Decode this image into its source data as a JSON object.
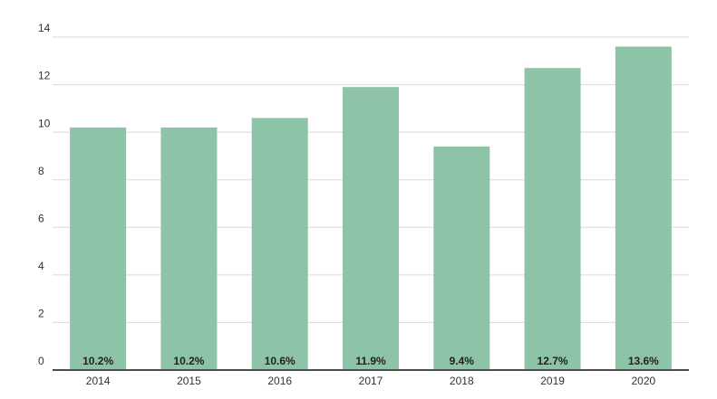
{
  "chart_data": {
    "type": "bar",
    "categories": [
      "2014",
      "2015",
      "2016",
      "2017",
      "2018",
      "2019",
      "2020"
    ],
    "values": [
      10.2,
      10.2,
      10.6,
      11.9,
      9.4,
      12.7,
      13.6
    ],
    "value_labels": [
      "10.2%",
      "10.2%",
      "10.6%",
      "11.9%",
      "9.4%",
      "12.7%",
      "13.6%"
    ],
    "color": "#8dc3a7",
    "ylim": [
      0,
      14
    ],
    "yticks": [
      0,
      2,
      4,
      6,
      8,
      10,
      12,
      14
    ],
    "grid": true
  }
}
